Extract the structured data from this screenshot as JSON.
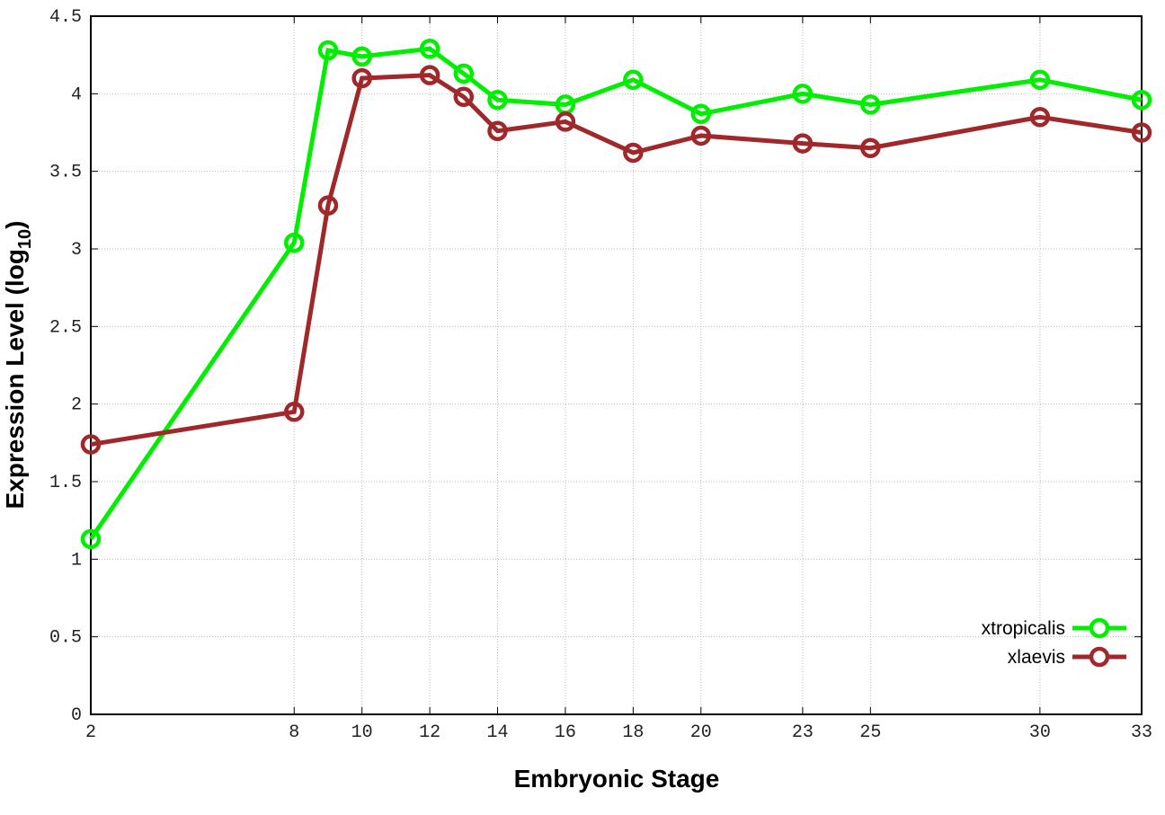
{
  "chart_data": {
    "type": "line",
    "xlabel": "Embryonic Stage",
    "ylabel": "Expression Level (log",
    "ylabel_subscript": "10",
    "ylabel_suffix": ")",
    "x": [
      2,
      8,
      9,
      10,
      12,
      13,
      14,
      16,
      18,
      20,
      23,
      25,
      30,
      33
    ],
    "x_tick_labels": [
      "2",
      "8",
      "10",
      "12",
      "14",
      "16",
      "18",
      "20",
      "23",
      "25",
      "30",
      "33"
    ],
    "y_tick_labels": [
      "0",
      "0.5",
      "1",
      "1.5",
      "2",
      "2.5",
      "3",
      "3.5",
      "4",
      "4.5"
    ],
    "xlim": [
      2,
      33
    ],
    "ylim": [
      0,
      4.5
    ],
    "grid": true,
    "legend_position": "bottom-right",
    "series": [
      {
        "name": "xtropicalis",
        "color": "#00ee00",
        "values": [
          1.13,
          3.04,
          4.28,
          4.24,
          4.29,
          4.13,
          3.96,
          3.93,
          4.09,
          3.87,
          4.0,
          3.93,
          4.09,
          3.96
        ]
      },
      {
        "name": "xlaevis",
        "color": "#a0282a",
        "values": [
          1.74,
          1.95,
          3.28,
          4.1,
          4.12,
          3.98,
          3.76,
          3.82,
          3.62,
          3.73,
          3.68,
          3.65,
          3.85,
          3.75
        ]
      }
    ]
  }
}
